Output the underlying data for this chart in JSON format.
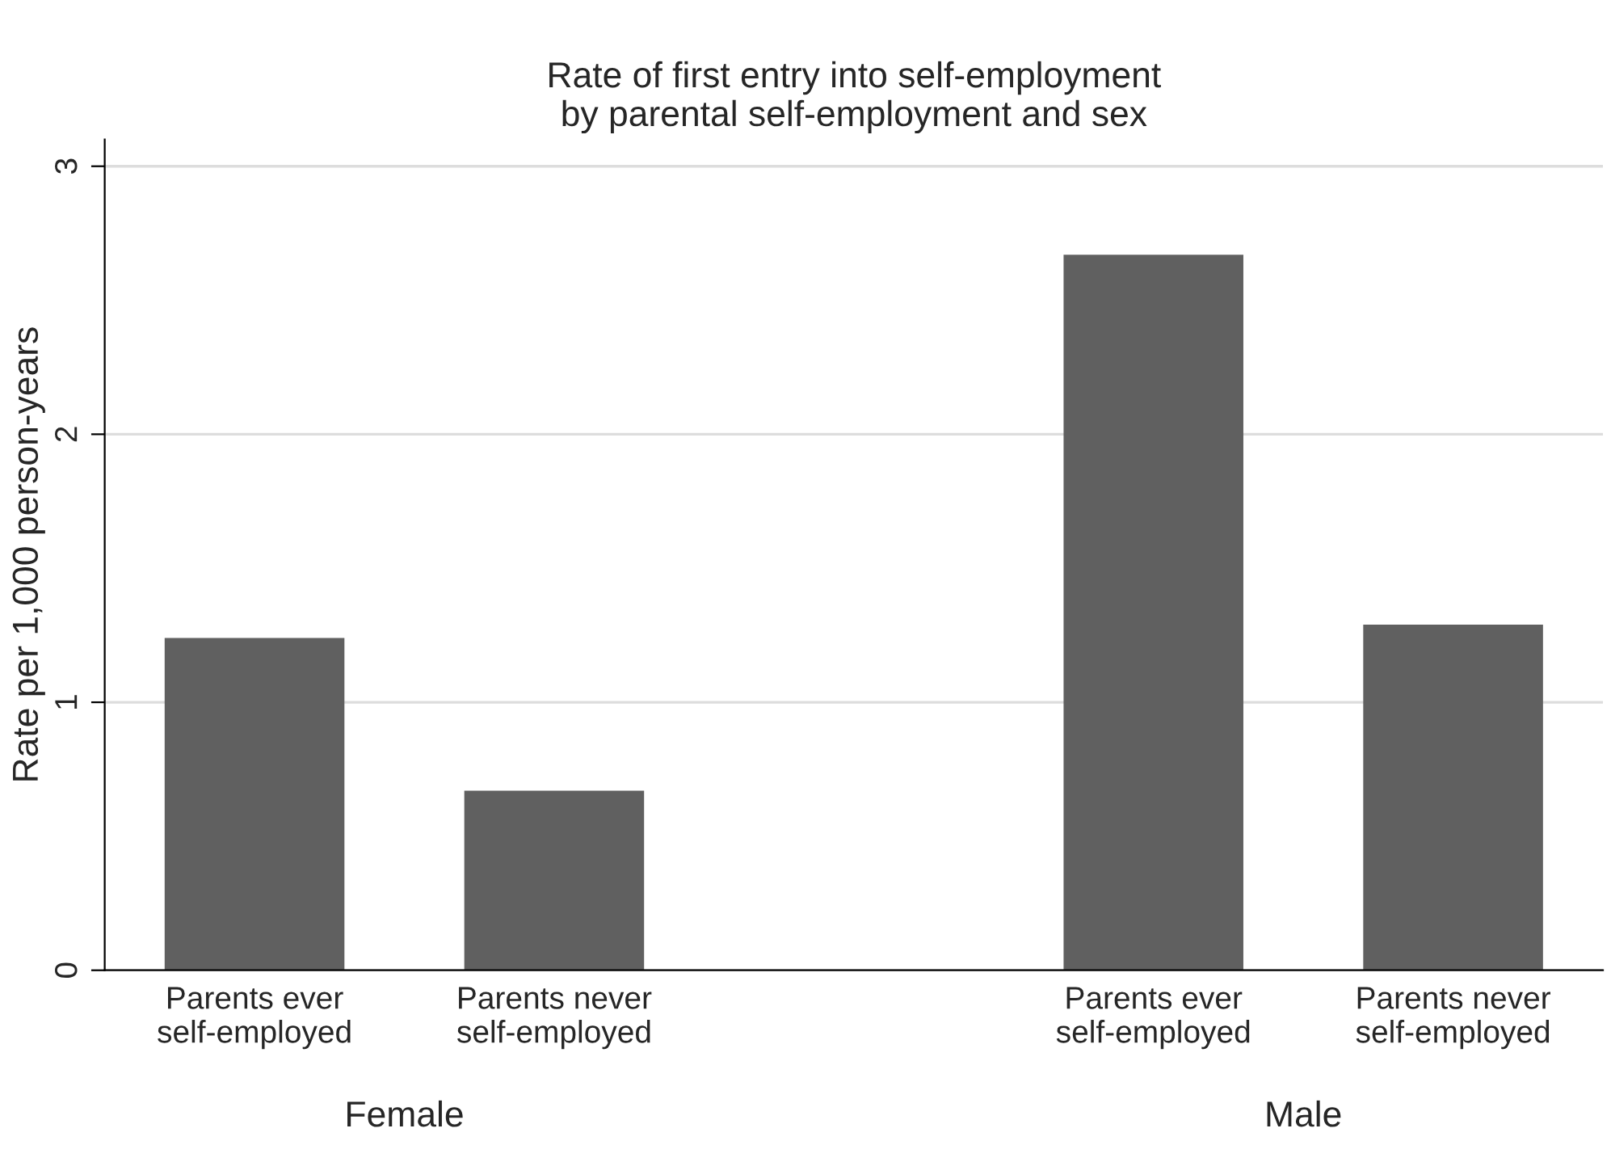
{
  "chart_data": {
    "type": "bar",
    "title": "Rate of first entry into self-employment\nby parental self-employment and sex",
    "ylabel": "Rate per 1,000 person-years",
    "categories": [
      "Parents ever\nself-employed",
      "Parents never\nself-employed",
      null,
      "Parents ever\nself-employed",
      "Parents never\nself-employed"
    ],
    "values": [
      1.24,
      0.67,
      null,
      2.67,
      1.29
    ],
    "color": "#606060",
    "ylim": [
      0,
      3.1
    ],
    "yticks": [
      0,
      1,
      2,
      3
    ],
    "grid": "y",
    "annotations": [
      "Female",
      "Male"
    ]
  }
}
